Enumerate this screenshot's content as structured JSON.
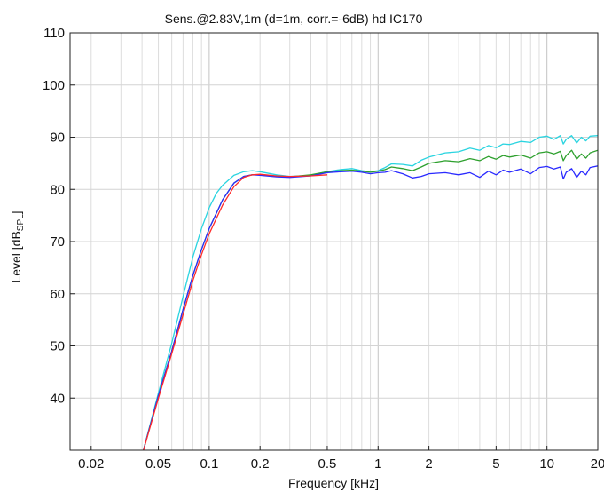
{
  "chart_data": {
    "type": "line",
    "title": "Sens.@2.83V,1m  (d=1m, corr.=-6dB)    hd IC170",
    "xlabel": "Frequency [kHz]",
    "ylabel_main": "Level [dB",
    "ylabel_sub": "SPL",
    "ylabel_close": "]",
    "x_scale": "log",
    "xlim": [
      0.015,
      20
    ],
    "ylim": [
      30,
      110
    ],
    "grid": true,
    "x_tick_values": [
      0.02,
      0.05,
      0.1,
      0.2,
      0.5,
      1,
      2,
      5,
      10,
      20
    ],
    "x_tick_labels": [
      "0.02",
      "0.05",
      "0.1",
      "0.2",
      "0.5",
      "1",
      "2",
      "5",
      "10",
      "20"
    ],
    "y_tick_values": [
      40,
      50,
      60,
      70,
      80,
      90,
      100,
      110
    ],
    "y_tick_labels": [
      "40",
      "50",
      "60",
      "70",
      "80",
      "90",
      "100",
      "110"
    ],
    "series": [
      {
        "color": "#ff2a2a",
        "x": [
          0.04,
          0.05,
          0.06,
          0.07,
          0.08,
          0.09,
          0.1,
          0.12,
          0.14,
          0.16,
          0.18,
          0.2,
          0.25,
          0.3,
          0.4,
          0.5
        ],
        "y": [
          29,
          40,
          48.5,
          56,
          62.5,
          67.5,
          71.5,
          77,
          80.5,
          82.3,
          82.8,
          82.9,
          82.6,
          82.5,
          82.6,
          82.8
        ]
      },
      {
        "color": "#2a2aff",
        "x": [
          0.04,
          0.05,
          0.06,
          0.07,
          0.08,
          0.09,
          0.1,
          0.12,
          0.14,
          0.16,
          0.18,
          0.2,
          0.25,
          0.3,
          0.4,
          0.5,
          0.6,
          0.7,
          0.8,
          0.9,
          1.0,
          1.1,
          1.2,
          1.4,
          1.6,
          1.8,
          2.0,
          2.5,
          3.0,
          3.5,
          4.0,
          4.5,
          5.0,
          5.5,
          6.0,
          7.0,
          8.0,
          9.0,
          10.0,
          11.0,
          12.0,
          12.5,
          13.0,
          14.0,
          15.0,
          16.0,
          17.0,
          18.0,
          20.0
        ],
        "y": [
          29,
          40.5,
          49,
          57,
          63.5,
          68.5,
          72.5,
          78,
          81.2,
          82.5,
          82.8,
          82.7,
          82.4,
          82.3,
          82.6,
          83.2,
          83.4,
          83.5,
          83.3,
          83.0,
          83.2,
          83.3,
          83.6,
          83.0,
          82.2,
          82.5,
          83.0,
          83.2,
          82.8,
          83.2,
          82.3,
          83.5,
          82.8,
          83.7,
          83.3,
          83.9,
          83.0,
          84.2,
          84.4,
          83.9,
          84.3,
          82.0,
          83.3,
          84.0,
          82.3,
          83.5,
          82.8,
          84.2,
          84.5
        ]
      },
      {
        "color": "#2ea02e",
        "x": [
          0.04,
          0.05,
          0.06,
          0.07,
          0.08,
          0.09,
          0.1,
          0.12,
          0.14,
          0.16,
          0.18,
          0.2,
          0.25,
          0.3,
          0.4,
          0.5,
          0.6,
          0.7,
          0.8,
          0.9,
          1.0,
          1.1,
          1.2,
          1.4,
          1.6,
          1.8,
          2.0,
          2.5,
          3.0,
          3.5,
          4.0,
          4.5,
          5.0,
          5.5,
          6.0,
          7.0,
          8.0,
          9.0,
          10.0,
          11.0,
          12.0,
          12.5,
          13.0,
          14.0,
          15.0,
          16.0,
          17.0,
          18.0,
          20.0
        ],
        "y": [
          29,
          40.5,
          49,
          57,
          63.5,
          68.5,
          72.5,
          78,
          81.2,
          82.5,
          82.8,
          82.8,
          82.5,
          82.4,
          82.8,
          83.4,
          83.6,
          83.7,
          83.5,
          83.3,
          83.5,
          83.8,
          84.3,
          84.0,
          83.6,
          84.3,
          85.0,
          85.5,
          85.3,
          85.9,
          85.5,
          86.3,
          85.8,
          86.5,
          86.2,
          86.6,
          86.0,
          87.0,
          87.2,
          86.8,
          87.3,
          85.5,
          86.5,
          87.5,
          85.8,
          86.8,
          86.0,
          87.0,
          87.5
        ]
      },
      {
        "color": "#2ad4e0",
        "x": [
          0.04,
          0.05,
          0.06,
          0.07,
          0.08,
          0.09,
          0.1,
          0.11,
          0.12,
          0.14,
          0.16,
          0.18,
          0.2,
          0.25,
          0.3,
          0.4,
          0.5,
          0.6,
          0.7,
          0.8,
          0.9,
          1.0,
          1.1,
          1.2,
          1.4,
          1.6,
          1.8,
          2.0,
          2.5,
          3.0,
          3.5,
          4.0,
          4.5,
          5.0,
          5.5,
          6.0,
          7.0,
          8.0,
          9.0,
          10.0,
          11.0,
          12.0,
          12.5,
          13.0,
          14.0,
          15.0,
          16.0,
          17.0,
          18.0,
          20.0
        ],
        "y": [
          29,
          41,
          50.5,
          59.5,
          67,
          72.5,
          76.5,
          79.2,
          80.8,
          82.7,
          83.4,
          83.6,
          83.4,
          82.8,
          82.5,
          82.7,
          83.4,
          83.8,
          84.0,
          83.6,
          83.4,
          83.6,
          84.2,
          84.9,
          84.8,
          84.5,
          85.6,
          86.2,
          87.0,
          87.2,
          87.9,
          87.5,
          88.4,
          88.0,
          88.7,
          88.6,
          89.2,
          89.0,
          90.0,
          90.2,
          89.6,
          90.3,
          88.7,
          89.6,
          90.3,
          88.9,
          90.0,
          89.3,
          90.2,
          90.3
        ]
      }
    ]
  }
}
